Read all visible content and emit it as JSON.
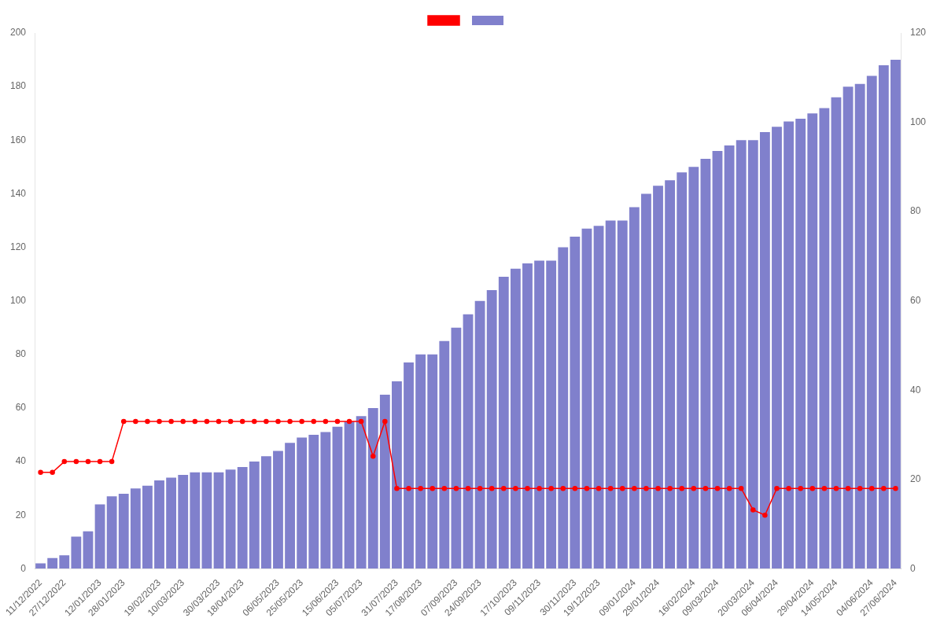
{
  "chart_data": {
    "type": "bar",
    "categories": [
      "11/12/2022",
      null,
      "27/12/2022",
      null,
      null,
      "12/01/2023",
      null,
      "28/01/2023",
      null,
      null,
      "19/02/2023",
      null,
      "10/03/2023",
      null,
      null,
      "30/03/2023",
      null,
      "18/04/2023",
      null,
      null,
      "06/05/2023",
      null,
      "25/05/2023",
      null,
      null,
      "15/06/2023",
      null,
      "05/07/2023",
      null,
      null,
      "31/07/2023",
      null,
      "17/08/2023",
      null,
      null,
      "07/09/2023",
      null,
      "24/09/2023",
      null,
      null,
      "17/10/2023",
      null,
      "09/11/2023",
      null,
      null,
      "30/11/2023",
      null,
      "19/12/2023",
      null,
      null,
      "09/01/2024",
      null,
      "29/01/2024",
      null,
      null,
      "16/02/2024",
      null,
      "09/03/2024",
      null,
      null,
      "20/03/2024",
      null,
      "06/04/2024",
      null,
      null,
      "29/04/2024",
      null,
      "14/05/2024",
      null,
      null,
      "04/06/2024",
      null,
      "27/06/2024"
    ],
    "series": [
      {
        "type": "line",
        "color": "#ff0000",
        "marker": "circle",
        "values": [
          36,
          36,
          40,
          40,
          40,
          40,
          40,
          55,
          55,
          55,
          55,
          55,
          55,
          55,
          55,
          55,
          55,
          55,
          55,
          55,
          55,
          55,
          55,
          55,
          55,
          55,
          55,
          55,
          42,
          55,
          30,
          30,
          30,
          30,
          30,
          30,
          30,
          30,
          30,
          30,
          30,
          30,
          30,
          30,
          30,
          30,
          30,
          30,
          30,
          30,
          30,
          30,
          30,
          30,
          30,
          30,
          30,
          30,
          30,
          30,
          22,
          20,
          30,
          30,
          30,
          30,
          30,
          30,
          30,
          30,
          30,
          30,
          30
        ]
      },
      {
        "type": "bar",
        "color": "#8080cc",
        "values": [
          2,
          4,
          5,
          12,
          14,
          24,
          27,
          28,
          30,
          31,
          33,
          34,
          35,
          36,
          36,
          36,
          37,
          38,
          40,
          42,
          44,
          47,
          49,
          50,
          51,
          53,
          55,
          57,
          60,
          65,
          70,
          77,
          80,
          80,
          85,
          90,
          95,
          100,
          104,
          109,
          112,
          114,
          115,
          115,
          120,
          124,
          127,
          128,
          130,
          130,
          135,
          140,
          143,
          145,
          148,
          150,
          153,
          156,
          158,
          160,
          160,
          163,
          165,
          167,
          168,
          170,
          172,
          176,
          180,
          181,
          184,
          188,
          190
        ]
      }
    ],
    "ylim": [
      0,
      200
    ],
    "yticks": [
      0,
      20,
      40,
      60,
      80,
      100,
      120,
      140,
      160,
      180,
      200
    ],
    "y2lim": [
      0,
      120
    ],
    "y2ticks": [
      0,
      20,
      40,
      60,
      80,
      100,
      120
    ],
    "grid": false,
    "legend": "top"
  }
}
